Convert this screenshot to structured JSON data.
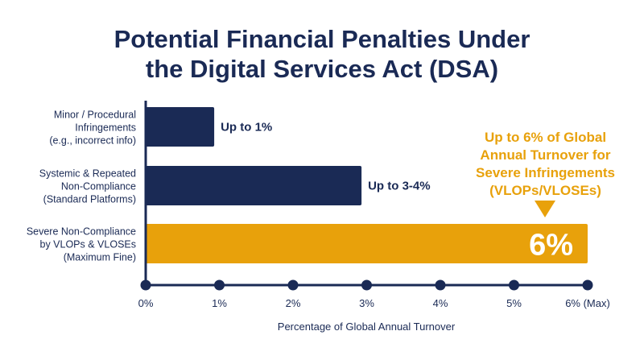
{
  "chart_data": {
    "type": "bar",
    "orientation": "horizontal",
    "title_lines": [
      "Potential Financial Penalties Under",
      "the Digital Services Act (DSA)"
    ],
    "xlabel": "Percentage of Global Annual Turnover",
    "ylabel": "",
    "xlim": [
      0,
      6
    ],
    "x_ticks": [
      {
        "value": 0,
        "label": "0%"
      },
      {
        "value": 1,
        "label": "1%"
      },
      {
        "value": 2,
        "label": "2%"
      },
      {
        "value": 3,
        "label": "3%"
      },
      {
        "value": 4,
        "label": "4%"
      },
      {
        "value": 5,
        "label": "5%"
      },
      {
        "value": 6,
        "label": "6% (Max)"
      }
    ],
    "categories": [
      {
        "lines": [
          "Minor / Procedural",
          "Infringements",
          "(e.g., incorrect info)"
        ],
        "value": 0.93,
        "label": "Up to 1%",
        "color": "#1a2a55"
      },
      {
        "lines": [
          "Systemic & Repeated",
          "Non-Compliance",
          "(Standard Platforms)"
        ],
        "value": 2.93,
        "label": "Up to 3-4%",
        "color": "#1a2a55"
      },
      {
        "lines": [
          "Severe Non-Compliance",
          "by VLOPs & VLOSEs",
          "(Maximum Fine)"
        ],
        "value": 6,
        "label": "6%",
        "color": "#e8a10b"
      }
    ],
    "annotation": {
      "lines": [
        "Up to 6% of Global",
        "Annual Turnover for",
        "Severe Infringements",
        "(VLOPs/VLOSEs)"
      ],
      "color": "#e8a10b"
    },
    "grid": false,
    "legend": "none"
  }
}
